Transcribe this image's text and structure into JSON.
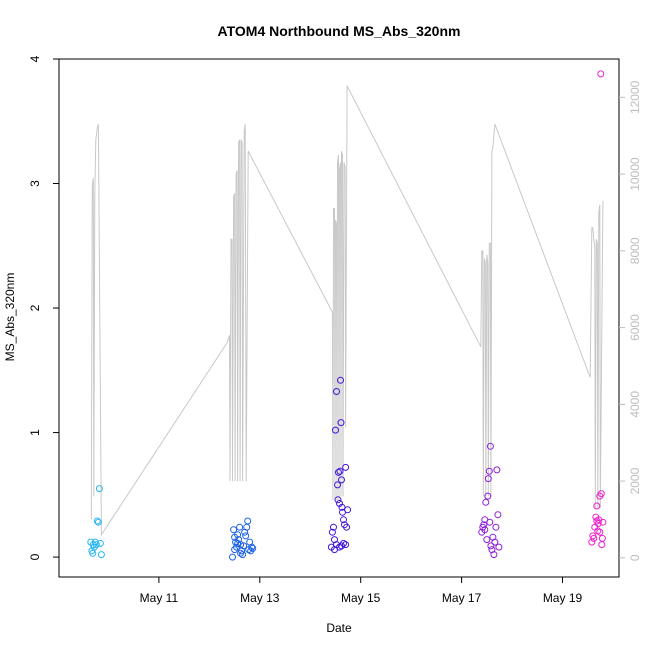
{
  "chart_data": {
    "type": "scatter",
    "title": "ATOM4 Northbound MS_Abs_320nm",
    "xlabel": "Date",
    "ylabel": "MS_Abs_320nm",
    "x_tick_labels": [
      "May 11",
      "May 13",
      "May 15",
      "May 17",
      "May 19"
    ],
    "x_ticks_day": [
      11,
      13,
      15,
      17,
      19
    ],
    "xlim_day": [
      9.02,
      20.12
    ],
    "ylim": [
      -0.16,
      4.0
    ],
    "y_ticks": [
      0,
      1,
      2,
      3,
      4
    ],
    "y_tick_labels": [
      "0",
      "1",
      "2",
      "3",
      "4"
    ],
    "y2lim": [
      -500,
      13000
    ],
    "y2_ticks": [
      0,
      2000,
      4000,
      6000,
      8000,
      10000,
      12000
    ],
    "y2_tick_labels": [
      "0",
      "2000",
      "4000",
      "6000",
      "8000",
      "10000",
      "12000"
    ],
    "grid": false,
    "point_colors": [
      "#29b6f6",
      "#1e63e6",
      "#4416d8",
      "#8e20d8",
      "#ee22cc"
    ],
    "line_color": "#c8c8c8",
    "points": [
      {
        "day": 9.65,
        "y": 0.12,
        "c": 0
      },
      {
        "day": 9.67,
        "y": 0.05,
        "c": 0
      },
      {
        "day": 9.69,
        "y": 0.03,
        "c": 0
      },
      {
        "day": 9.7,
        "y": 0.1,
        "c": 0
      },
      {
        "day": 9.72,
        "y": 0.08,
        "c": 0
      },
      {
        "day": 9.74,
        "y": 0.12,
        "c": 0
      },
      {
        "day": 9.76,
        "y": 0.1,
        "c": 0
      },
      {
        "day": 9.78,
        "y": 0.29,
        "c": 0
      },
      {
        "day": 9.8,
        "y": 0.28,
        "c": 0
      },
      {
        "day": 9.82,
        "y": 0.55,
        "c": 0
      },
      {
        "day": 9.84,
        "y": 0.11,
        "c": 0
      },
      {
        "day": 9.86,
        "y": 0.02,
        "c": 0
      },
      {
        "day": 12.46,
        "y": 0.0,
        "c": 1
      },
      {
        "day": 12.48,
        "y": 0.22,
        "c": 1
      },
      {
        "day": 12.5,
        "y": 0.16,
        "c": 1
      },
      {
        "day": 12.52,
        "y": 0.12,
        "c": 1
      },
      {
        "day": 12.54,
        "y": 0.08,
        "c": 1
      },
      {
        "day": 12.56,
        "y": 0.18,
        "c": 1
      },
      {
        "day": 12.58,
        "y": 0.14,
        "c": 1
      },
      {
        "day": 12.6,
        "y": 0.24,
        "c": 1
      },
      {
        "day": 12.62,
        "y": 0.1,
        "c": 1
      },
      {
        "day": 12.64,
        "y": 0.05,
        "c": 1
      },
      {
        "day": 12.66,
        "y": 0.02,
        "c": 1
      },
      {
        "day": 12.68,
        "y": 0.09,
        "c": 1
      },
      {
        "day": 12.7,
        "y": 0.2,
        "c": 1
      },
      {
        "day": 12.72,
        "y": 0.17,
        "c": 1
      },
      {
        "day": 12.74,
        "y": 0.24,
        "c": 1
      },
      {
        "day": 12.76,
        "y": 0.29,
        "c": 1
      },
      {
        "day": 12.78,
        "y": 0.06,
        "c": 1
      },
      {
        "day": 12.8,
        "y": 0.12,
        "c": 1
      },
      {
        "day": 12.82,
        "y": 0.05,
        "c": 1
      },
      {
        "day": 12.84,
        "y": 0.08,
        "c": 1
      },
      {
        "day": 12.86,
        "y": 0.07,
        "c": 1
      },
      {
        "day": 12.62,
        "y": 0.03,
        "c": 1
      },
      {
        "day": 12.56,
        "y": 0.11,
        "c": 1
      },
      {
        "day": 12.5,
        "y": 0.06,
        "c": 1
      },
      {
        "day": 14.42,
        "y": 0.08,
        "c": 2
      },
      {
        "day": 14.44,
        "y": 0.2,
        "c": 2
      },
      {
        "day": 14.46,
        "y": 0.24,
        "c": 2
      },
      {
        "day": 14.48,
        "y": 0.06,
        "c": 2
      },
      {
        "day": 14.5,
        "y": 1.02,
        "c": 2
      },
      {
        "day": 14.52,
        "y": 1.33,
        "c": 2
      },
      {
        "day": 14.54,
        "y": 0.58,
        "c": 2
      },
      {
        "day": 14.55,
        "y": 0.46,
        "c": 2
      },
      {
        "day": 14.56,
        "y": 0.68,
        "c": 2
      },
      {
        "day": 14.58,
        "y": 0.43,
        "c": 2
      },
      {
        "day": 14.59,
        "y": 0.69,
        "c": 2
      },
      {
        "day": 14.6,
        "y": 1.42,
        "c": 2
      },
      {
        "day": 14.61,
        "y": 1.08,
        "c": 2
      },
      {
        "day": 14.62,
        "y": 0.62,
        "c": 2
      },
      {
        "day": 14.63,
        "y": 0.4,
        "c": 2
      },
      {
        "day": 14.64,
        "y": 0.36,
        "c": 2
      },
      {
        "day": 14.66,
        "y": 0.3,
        "c": 2
      },
      {
        "day": 14.68,
        "y": 0.26,
        "c": 2
      },
      {
        "day": 14.7,
        "y": 0.72,
        "c": 2
      },
      {
        "day": 14.72,
        "y": 0.24,
        "c": 2
      },
      {
        "day": 14.74,
        "y": 0.38,
        "c": 2
      },
      {
        "day": 14.52,
        "y": 0.1,
        "c": 2
      },
      {
        "day": 14.58,
        "y": 0.08,
        "c": 2
      },
      {
        "day": 14.62,
        "y": 0.09,
        "c": 2
      },
      {
        "day": 14.66,
        "y": 0.11,
        "c": 2
      },
      {
        "day": 14.7,
        "y": 0.1,
        "c": 2
      },
      {
        "day": 14.48,
        "y": 0.14,
        "c": 2
      },
      {
        "day": 17.4,
        "y": 0.2,
        "c": 3
      },
      {
        "day": 17.42,
        "y": 0.24,
        "c": 3
      },
      {
        "day": 17.44,
        "y": 0.26,
        "c": 3
      },
      {
        "day": 17.46,
        "y": 0.22,
        "c": 3
      },
      {
        "day": 17.48,
        "y": 0.44,
        "c": 3
      },
      {
        "day": 17.5,
        "y": 0.14,
        "c": 3
      },
      {
        "day": 17.52,
        "y": 0.49,
        "c": 3
      },
      {
        "day": 17.53,
        "y": 0.63,
        "c": 3
      },
      {
        "day": 17.55,
        "y": 0.69,
        "c": 3
      },
      {
        "day": 17.57,
        "y": 0.89,
        "c": 3
      },
      {
        "day": 17.58,
        "y": 0.09,
        "c": 3
      },
      {
        "day": 17.6,
        "y": 0.06,
        "c": 3
      },
      {
        "day": 17.62,
        "y": 0.16,
        "c": 3
      },
      {
        "day": 17.64,
        "y": 0.02,
        "c": 3
      },
      {
        "day": 17.66,
        "y": 0.12,
        "c": 3
      },
      {
        "day": 17.68,
        "y": 0.24,
        "c": 3
      },
      {
        "day": 17.7,
        "y": 0.7,
        "c": 3
      },
      {
        "day": 17.72,
        "y": 0.34,
        "c": 3
      },
      {
        "day": 17.74,
        "y": 0.08,
        "c": 3
      },
      {
        "day": 17.56,
        "y": 0.28,
        "c": 3
      },
      {
        "day": 17.46,
        "y": 0.3,
        "c": 3
      },
      {
        "day": 19.58,
        "y": 0.12,
        "c": 4
      },
      {
        "day": 19.6,
        "y": 0.17,
        "c": 4
      },
      {
        "day": 19.62,
        "y": 0.15,
        "c": 4
      },
      {
        "day": 19.64,
        "y": 0.24,
        "c": 4
      },
      {
        "day": 19.66,
        "y": 0.32,
        "c": 4
      },
      {
        "day": 19.68,
        "y": 0.41,
        "c": 4
      },
      {
        "day": 19.7,
        "y": 0.21,
        "c": 4
      },
      {
        "day": 19.71,
        "y": 0.27,
        "c": 4
      },
      {
        "day": 19.72,
        "y": 0.3,
        "c": 4
      },
      {
        "day": 19.74,
        "y": 0.49,
        "c": 4
      },
      {
        "day": 19.76,
        "y": 3.88,
        "c": 4
      },
      {
        "day": 19.77,
        "y": 0.51,
        "c": 4
      },
      {
        "day": 19.78,
        "y": 0.1,
        "c": 4
      },
      {
        "day": 19.79,
        "y": 0.15,
        "c": 4
      },
      {
        "day": 19.8,
        "y": 0.28,
        "c": 4
      },
      {
        "day": 19.74,
        "y": 0.2,
        "c": 4
      },
      {
        "day": 19.68,
        "y": 0.29,
        "c": 4
      }
    ],
    "line": [
      [
        9.66,
        1000
      ],
      [
        9.68,
        9700
      ],
      [
        9.7,
        9900
      ],
      [
        9.71,
        1600
      ],
      [
        9.73,
        9500
      ],
      [
        9.75,
        10900
      ],
      [
        9.78,
        11200
      ],
      [
        9.8,
        11300
      ],
      [
        9.86,
        600
      ],
      [
        12.35,
        5600
      ],
      [
        12.4,
        5800
      ],
      [
        12.41,
        2000
      ],
      [
        12.43,
        8300
      ],
      [
        12.45,
        8300
      ],
      [
        12.46,
        2000
      ],
      [
        12.48,
        9400
      ],
      [
        12.5,
        9500
      ],
      [
        12.51,
        2000
      ],
      [
        12.53,
        10000
      ],
      [
        12.55,
        10100
      ],
      [
        12.56,
        2000
      ],
      [
        12.58,
        10800
      ],
      [
        12.6,
        10900
      ],
      [
        12.61,
        2000
      ],
      [
        12.63,
        10900
      ],
      [
        12.65,
        10800
      ],
      [
        12.66,
        2000
      ],
      [
        12.69,
        11100
      ],
      [
        12.71,
        11300
      ],
      [
        12.73,
        2000
      ],
      [
        12.77,
        10600
      ],
      [
        14.4,
        6500
      ],
      [
        14.44,
        6400
      ],
      [
        14.45,
        1500
      ],
      [
        14.46,
        9100
      ],
      [
        14.48,
        9100
      ],
      [
        14.49,
        1500
      ],
      [
        14.5,
        8800
      ],
      [
        14.52,
        8700
      ],
      [
        14.53,
        1500
      ],
      [
        14.54,
        10300
      ],
      [
        14.56,
        10500
      ],
      [
        14.57,
        1500
      ],
      [
        14.58,
        10100
      ],
      [
        14.6,
        10300
      ],
      [
        14.61,
        1600
      ],
      [
        14.62,
        10600
      ],
      [
        14.64,
        10500
      ],
      [
        14.65,
        1600
      ],
      [
        14.67,
        10300
      ],
      [
        14.69,
        10200
      ],
      [
        14.7,
        3400
      ],
      [
        14.73,
        12300
      ],
      [
        17.38,
        5500
      ],
      [
        17.4,
        8000
      ],
      [
        17.42,
        8000
      ],
      [
        17.43,
        1600
      ],
      [
        17.45,
        7800
      ],
      [
        17.47,
        7700
      ],
      [
        17.48,
        1600
      ],
      [
        17.5,
        7900
      ],
      [
        17.52,
        7700
      ],
      [
        17.53,
        1600
      ],
      [
        17.55,
        8200
      ],
      [
        17.57,
        8200
      ],
      [
        17.58,
        1600
      ],
      [
        17.6,
        10600
      ],
      [
        17.62,
        10700
      ],
      [
        17.66,
        11300
      ],
      [
        19.55,
        4700
      ],
      [
        19.58,
        8600
      ],
      [
        19.6,
        8600
      ],
      [
        19.62,
        8300
      ],
      [
        19.64,
        8100
      ],
      [
        19.65,
        1300
      ],
      [
        19.67,
        8300
      ],
      [
        19.69,
        8200
      ],
      [
        19.7,
        1300
      ],
      [
        19.72,
        9000
      ],
      [
        19.74,
        9200
      ],
      [
        19.75,
        1300
      ],
      [
        19.8,
        9300
      ]
    ]
  }
}
